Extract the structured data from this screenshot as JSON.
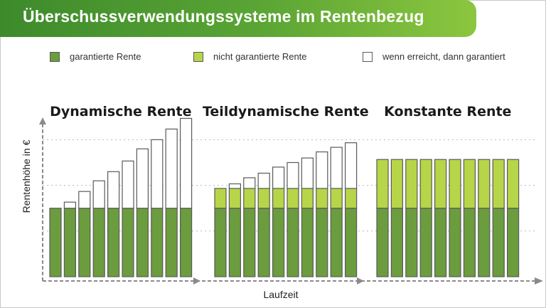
{
  "title": "Überschussverwendungssysteme im Rentenbezug",
  "colors": {
    "guaranteed": "#6b9c3e",
    "non_guaranteed": "#b7d548",
    "once_reached": "#ffffff",
    "bar_border": "#5a5a5a",
    "axis": "#8a8a8a"
  },
  "legend": [
    {
      "label": "garantierte Rente",
      "key": "guaranteed"
    },
    {
      "label": "nicht garantierte Rente",
      "key": "non_guaranteed"
    },
    {
      "label": "wenn erreicht, dann garantiert",
      "key": "once_reached"
    }
  ],
  "chart_data": {
    "type": "bar",
    "stacked": true,
    "title": "Überschussverwendungssysteme im Rentenbezug",
    "xlabel": "Laufzeit",
    "ylabel": "Rentenhöhe in €",
    "ylim": [
      0,
      100
    ],
    "grid": true,
    "legend_position": "top",
    "groups": [
      {
        "title": "Dynamische Rente",
        "series": [
          {
            "name": "garantierte Rente",
            "key": "guaranteed",
            "values": [
              45,
              45,
              45,
              45,
              45,
              45,
              45,
              45,
              45,
              45
            ]
          },
          {
            "name": "nicht garantierte Rente",
            "key": "non_guaranteed",
            "values": [
              0,
              0,
              0,
              0,
              0,
              0,
              0,
              0,
              0,
              0
            ]
          },
          {
            "name": "wenn erreicht, dann garantiert",
            "key": "once_reached",
            "values": [
              0,
              4,
              11,
              18,
              24,
              31,
              39,
              45,
              52,
              59
            ]
          }
        ]
      },
      {
        "title": "Teildynamische Rente",
        "series": [
          {
            "name": "garantierte Rente",
            "key": "guaranteed",
            "values": [
              45,
              45,
              45,
              45,
              45,
              45,
              45,
              45,
              45,
              45
            ]
          },
          {
            "name": "nicht garantierte Rente",
            "key": "non_guaranteed",
            "values": [
              13,
              13,
              13,
              13,
              13,
              13,
              13,
              13,
              13,
              13
            ]
          },
          {
            "name": "wenn erreicht, dann garantiert",
            "key": "once_reached",
            "values": [
              0,
              3,
              7,
              10,
              14,
              17,
              20,
              24,
              27,
              30
            ]
          }
        ]
      },
      {
        "title": "Konstante Rente",
        "series": [
          {
            "name": "garantierte Rente",
            "key": "guaranteed",
            "values": [
              45,
              45,
              45,
              45,
              45,
              45,
              45,
              45,
              45,
              45
            ]
          },
          {
            "name": "nicht garantierte Rente",
            "key": "non_guaranteed",
            "values": [
              32,
              32,
              32,
              32,
              32,
              32,
              32,
              32,
              32,
              32
            ]
          },
          {
            "name": "wenn erreicht, dann garantiert",
            "key": "once_reached",
            "values": [
              0,
              0,
              0,
              0,
              0,
              0,
              0,
              0,
              0,
              0
            ]
          }
        ]
      }
    ]
  }
}
